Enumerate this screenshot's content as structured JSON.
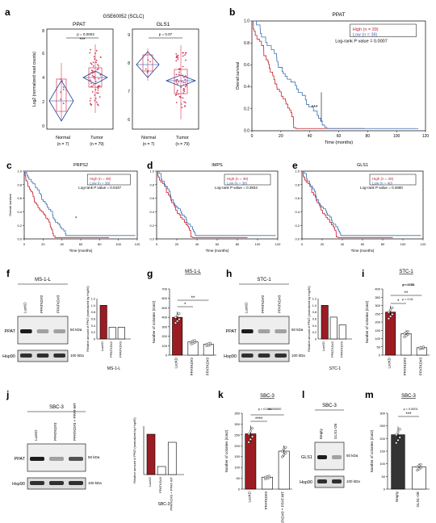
{
  "panels": {
    "a": {
      "letter": "a",
      "dataset": "GSE60052 (SCLC)",
      "ylabel": "Log2 (normalized read counts)",
      "left": {
        "title": "PPAT",
        "pval": "p = 0.0003",
        "stars": "***",
        "yticks": [
          "0",
          "2",
          "4",
          "6",
          "8"
        ],
        "groups": [
          {
            "name": "Normal",
            "n": "(n = 7)"
          },
          {
            "name": "Tumor",
            "n": "(n = 79)"
          }
        ]
      },
      "right": {
        "title": "GLS1",
        "pval": "p = 0.07",
        "yticks": [
          "6",
          "7",
          "8",
          "9"
        ],
        "groups": [
          {
            "name": "Normal",
            "n": "(n = 7)"
          },
          {
            "name": "Tumor",
            "n": "(n = 79)"
          }
        ]
      }
    },
    "b": {
      "letter": "b",
      "title": "PPAT",
      "ylabel": "Overall survival",
      "xlabel": "Time (months)",
      "legend_high": "High (n = 39)",
      "legend_low": "Low (n = 38)",
      "logrank": "Log-rank P value = 0.0007",
      "stars": "***",
      "xticks": [
        "0",
        "20",
        "40",
        "60",
        "80",
        "100",
        "120"
      ],
      "yticks": [
        "0.0",
        "0.2",
        "0.4",
        "0.6",
        "0.8",
        "1.0"
      ]
    },
    "c": {
      "letter": "c",
      "title": "PRPS2",
      "ylabel": "Overall survival",
      "xlabel": "Time (months)",
      "legend_high": "High (n = 39)",
      "legend_low": "Low (n = 38)",
      "logrank": "Log-rank P value = 0.0437",
      "stars": "*",
      "xticks": [
        "0",
        "20",
        "40",
        "60",
        "80",
        "100",
        "120"
      ],
      "yticks": [
        "0.0",
        "0.2",
        "0.4",
        "0.6",
        "0.8",
        "1.0"
      ]
    },
    "d": {
      "letter": "d",
      "title": "IMPS",
      "xlabel": "Time (months)",
      "legend_high": "High (n = 39)",
      "legend_low": "Low (n = 38)",
      "logrank": "Log-rank P value = 0.3834",
      "xticks": [
        "0",
        "20",
        "40",
        "60",
        "80",
        "100",
        "120"
      ],
      "yticks": [
        "0.0",
        "0.2",
        "0.4",
        "0.6",
        "0.8",
        "1.0"
      ]
    },
    "e": {
      "letter": "e",
      "title": "GLS1",
      "xlabel": "Time (months)",
      "legend_high": "High (n = 39)",
      "legend_low": "Low (n = 40)",
      "logrank": "Log-rank P value = 0.4680",
      "xticks": [
        "0",
        "20",
        "40",
        "60",
        "80",
        "100",
        "120"
      ],
      "yticks": [
        "0.0",
        "0.2",
        "0.4",
        "0.6",
        "0.8",
        "1.0"
      ]
    },
    "f": {
      "letter": "f",
      "cell": "MS-1-L",
      "lanes": [
        "LucKD",
        "PPATKD#2",
        "PPATKD#3"
      ],
      "band1": "PPAT",
      "band2": "Hsp90",
      "kda1": "50 kDa",
      "kda2": "100 kDa",
      "quant_ylabel": "Relative amount of PPAT (normalized by Hsp90)",
      "quant_yticks": [
        "0",
        "0.2",
        "0.4",
        "0.6",
        "0.8",
        "1.0",
        "1.2"
      ],
      "quant_labels": [
        "LucKD",
        "PPATKD#2",
        "PPATKD#3"
      ],
      "quant_cell": "MS-1-L",
      "quant_values": [
        1.0,
        0.35,
        0.35
      ]
    },
    "g": {
      "letter": "g",
      "cell": "MS-1-L",
      "ylabel": "Number of colonies (/cm2)",
      "yticks": [
        "0",
        "100",
        "200",
        "300",
        "400",
        "500",
        "600",
        "700"
      ],
      "labels": [
        "LucKD",
        "PPATKD#2",
        "PPATKD#3"
      ],
      "values": [
        400,
        140,
        115
      ],
      "sig1": "*",
      "sig2": "**"
    },
    "h": {
      "letter": "h",
      "cell": "STC-1",
      "lanes": [
        "LucKD",
        "PPATKD#2",
        "PPATKD#3"
      ],
      "band1": "PPAT",
      "band2": "Hsp90",
      "kda1": "50 kDa",
      "kda2": "100 kDa",
      "quant_ylabel": "Relative amount of PPAT (normalized by Hsp90)",
      "quant_yticks": [
        "0",
        "0.2",
        "0.4",
        "0.6",
        "0.8",
        "1.0",
        "1.2"
      ],
      "quant_labels": [
        "LucKD",
        "PPATKD#2",
        "PPATKD#3"
      ],
      "quant_cell": "STC-1",
      "quant_values": [
        1.0,
        0.65,
        0.42
      ]
    },
    "i": {
      "letter": "i",
      "cell": "STC-1",
      "ylabel": "Number of colonies (/cm2)",
      "yticks": [
        "0",
        "50",
        "100",
        "150",
        "200",
        "250",
        "300",
        "350",
        "400"
      ],
      "labels": [
        "LucKD",
        "PPATKD#2",
        "PPATKD#3"
      ],
      "values": [
        260,
        130,
        45
      ],
      "p1": "p < 0.001",
      "p2": "p < 0.01",
      "sig1": "*",
      "sig2": "**"
    },
    "j": {
      "letter": "j",
      "cell": "SBC-3",
      "lanes": [
        "LucKD",
        "PPATKD#3",
        "PPATKD#3 + PPAT-WT"
      ],
      "band1": "PPAT",
      "band2": "Hsp90",
      "kda1": "50 kDa",
      "kda2": "100 kDa",
      "quant_ylabel": "Relative amount of PPAT (normalized by Hsp90)",
      "quant_labels": [
        "LucKD",
        "PPATKD#3",
        "PPATKD#3 + PPAT-WT"
      ],
      "quant_cell": "SBC-3",
      "quant_values": [
        1.0,
        0.2,
        0.8
      ]
    },
    "k": {
      "letter": "k",
      "cell": "SBC-3",
      "ylabel": "Number of colonies (/cm2)",
      "yticks": [
        "0",
        "50",
        "100",
        "150",
        "200",
        "250",
        "300",
        "350"
      ],
      "labels": [
        "LucKD",
        "PPATKD#3",
        "PPATKD#3 + PPAT-WT"
      ],
      "values": [
        255,
        55,
        175
      ],
      "ns": "ns",
      "p": "p = 0.000000000",
      "stars": "****"
    },
    "l": {
      "letter": "l",
      "cell": "SBC-3",
      "lanes": [
        "Empty",
        "GLS1-OE"
      ],
      "band1": "GLS1",
      "band2": "Hsp90",
      "kda1": "50 kDa",
      "kda2": "100 kDa"
    },
    "m": {
      "letter": "m",
      "cell": "SBC-3",
      "ylabel": "Number of colonies (/cm2)",
      "yticks": [
        "0",
        "50",
        "100",
        "150",
        "200",
        "250",
        "300"
      ],
      "labels": [
        "Empty",
        "GLS1-OE"
      ],
      "values": [
        215,
        88
      ],
      "p": "p = 0.0001",
      "stars": "***"
    }
  },
  "colors": {
    "high": "#c8202c",
    "low": "#3a6fb5",
    "bar_red": "#9b1c22",
    "bar_dark": "#333333",
    "box_pink": "#d23c5a",
    "diamond": "#1f3f99"
  }
}
